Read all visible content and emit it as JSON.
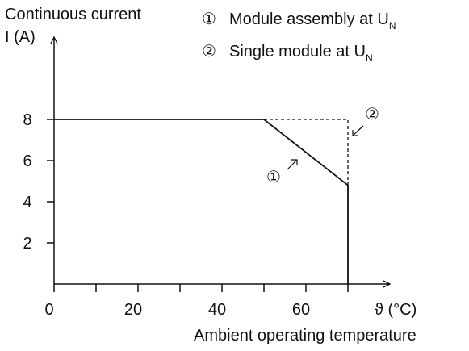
{
  "chart_data": {
    "type": "line",
    "y_title": "Continuous current",
    "y_label": "I (A)",
    "x_label": "ϑ (°C)",
    "x_title": "Ambient operating temperature",
    "xlim": [
      0,
      80
    ],
    "ylim": [
      0,
      12
    ],
    "xticks": [
      0,
      20,
      40,
      60
    ],
    "xminor": [
      10,
      30,
      50,
      70
    ],
    "yticks": [
      2,
      4,
      6,
      8
    ],
    "series": [
      {
        "marker": "①",
        "name": "Module assembly at U",
        "name_sub": "N",
        "color": "#111111",
        "dash": false,
        "x": [
          0,
          50,
          70,
          70
        ],
        "values": [
          8,
          8,
          4.8,
          0
        ]
      },
      {
        "marker": "②",
        "name": "Single module at U",
        "name_sub": "N",
        "color": "#111111",
        "dash": true,
        "x": [
          50,
          70,
          70
        ],
        "values": [
          8,
          8,
          4.8
        ]
      }
    ]
  }
}
